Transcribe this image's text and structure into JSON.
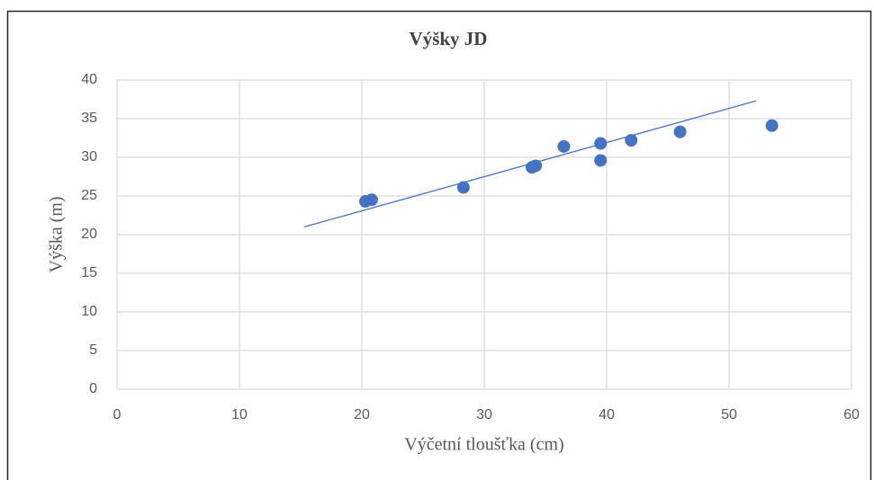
{
  "chart_data": {
    "type": "scatter",
    "title": "Výšky JD",
    "x_label": "Výčetní tloušťka (cm)",
    "y_label": "Výška (m)",
    "x": [
      20.3,
      20.8,
      28.3,
      33.9,
      34.2,
      36.5,
      39.5,
      39.5,
      42,
      46,
      53.5
    ],
    "y": [
      24.3,
      24.5,
      26.1,
      28.7,
      28.9,
      31.4,
      29.6,
      31.8,
      32.2,
      33.3,
      34.1
    ],
    "color": "#4472c4",
    "trendline": {
      "x": [
        15.3,
        52.2
      ],
      "y": [
        21,
        37.3
      ],
      "color": "#4472c4"
    },
    "xlim": [
      0,
      60
    ],
    "xticks": [
      0,
      10,
      20,
      30,
      40,
      50,
      60
    ],
    "ylim": [
      0,
      40
    ],
    "yticks": [
      0,
      5,
      10,
      15,
      20,
      25,
      30,
      35,
      40
    ],
    "grid": true
  }
}
